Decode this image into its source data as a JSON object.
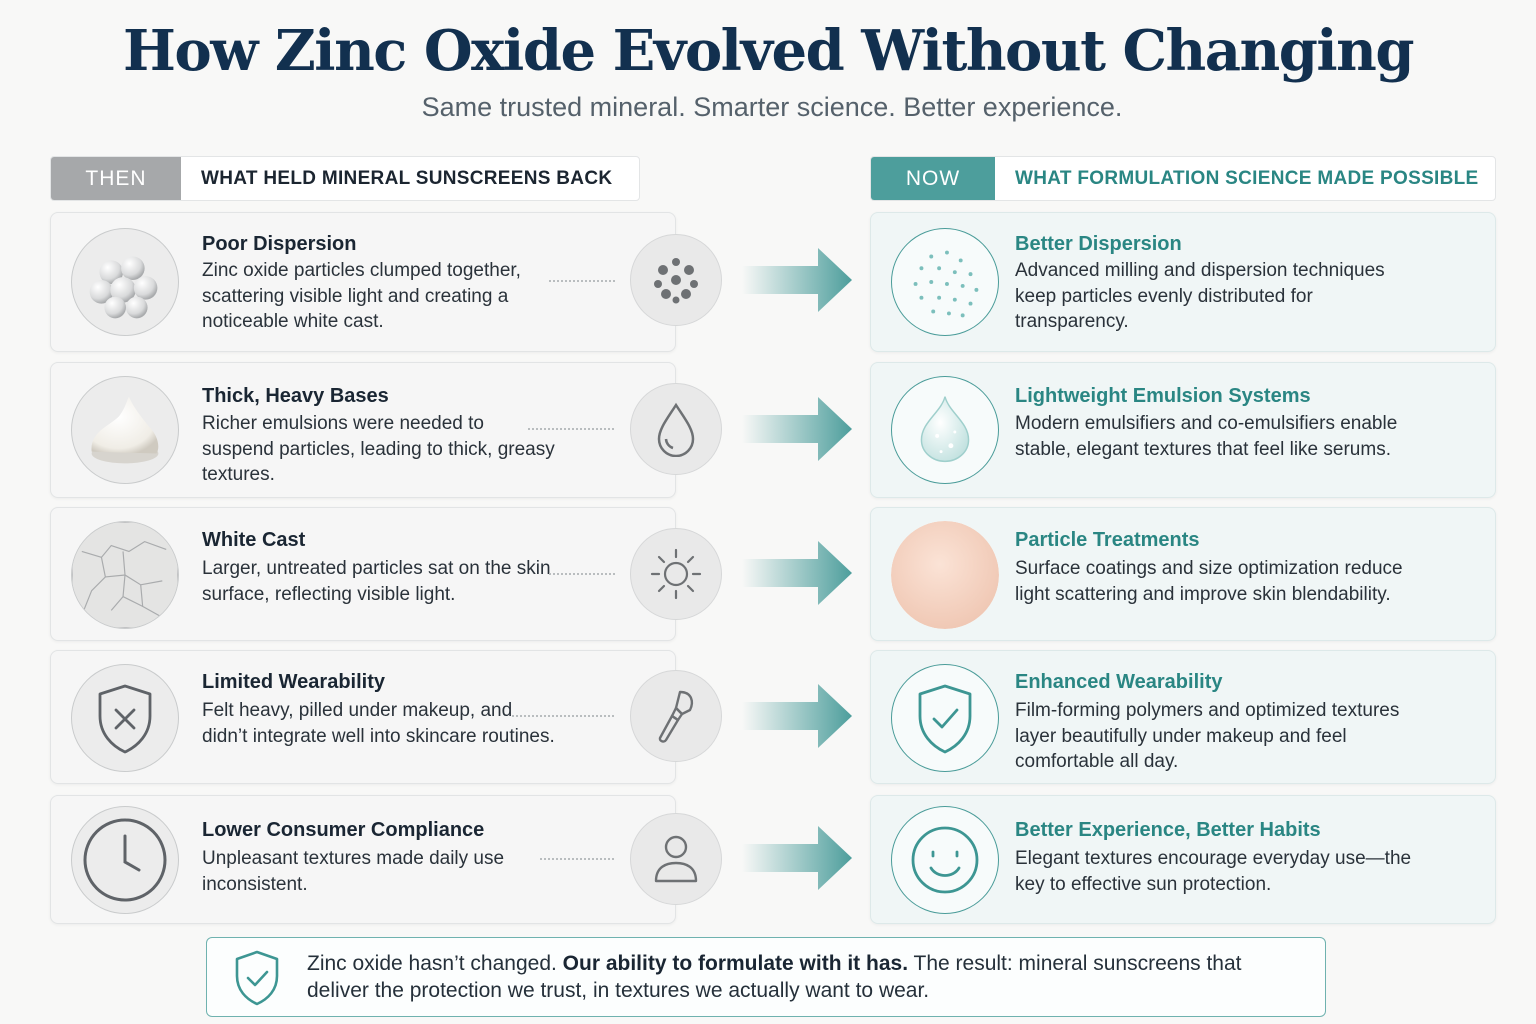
{
  "title": "How Zinc Oxide Evolved Without Changing",
  "subtitle": "Same trusted mineral. Smarter science. Better experience.",
  "then_header": {
    "tag": "THEN",
    "text": "WHAT HELD MINERAL SUNSCREENS BACK"
  },
  "now_header": {
    "tag": "NOW",
    "text": "WHAT FORMULATION SCIENCE MADE POSSIBLE"
  },
  "rows": [
    {
      "then_title": "Poor Dispersion",
      "then_desc": "Zinc oxide particles clumped together, scattering visible light and creating a noticeable white cast.",
      "then_image": "clumped-spheres-image",
      "mid_icon": "particles-icon",
      "now_title": "Better Dispersion",
      "now_desc": "Advanced milling and dispersion techniques keep particles evenly distributed for transparency.",
      "now_icon": "dispersed-particles-icon"
    },
    {
      "then_title": "Thick, Heavy Bases",
      "then_desc": "Richer emulsions were needed to suspend particles, leading to thick, greasy textures.",
      "then_image": "cream-dollop-image",
      "mid_icon": "droplet-icon",
      "now_title": "Lightweight Emulsion Systems",
      "now_desc": "Modern emulsifiers and co-emulsifiers enable stable, elegant textures that feel like serums.",
      "now_icon": "serum-drop-image"
    },
    {
      "then_title": "White Cast",
      "then_desc": "Larger, untreated particles sat on the skin surface, reflecting visible light.",
      "then_image": "cracked-surface-image",
      "mid_icon": "sun-icon",
      "now_title": "Particle Treatments",
      "now_desc": "Surface coatings and size optimization reduce light scattering and improve skin blendability.",
      "now_icon": "skin-tone-swatch-image"
    },
    {
      "then_title": "Limited Wearability",
      "then_desc": "Felt heavy, pilled under makeup, and didn’t integrate well into skincare routines.",
      "then_image": "shield-x-icon",
      "mid_icon": "makeup-brush-icon",
      "now_title": "Enhanced Wearability",
      "now_desc": "Film-forming polymers and optimized textures layer beautifully under makeup and feel comfortable all day.",
      "now_icon": "shield-check-icon"
    },
    {
      "then_title": "Lower Consumer Compliance",
      "then_desc": "Unpleasant textures made daily use inconsistent.",
      "then_image": "clock-icon",
      "mid_icon": "user-icon",
      "now_title": "Better Experience, Better Habits",
      "now_desc": "Elegant textures encourage everyday use—the key to effective sun protection.",
      "now_icon": "smiley-icon"
    }
  ],
  "footer": {
    "text_before": "Zinc oxide hasn’t changed. ",
    "text_bold": "Our ability to formulate with it has.",
    "text_after": " The result: mineral sunscreens that deliver the protection we trust, in textures we actually want to wear.",
    "icon": "shield-check-icon"
  },
  "colors": {
    "accent_teal": "#4d9e9c",
    "title_navy": "#12304f",
    "then_gray": "#a6a8aa"
  }
}
